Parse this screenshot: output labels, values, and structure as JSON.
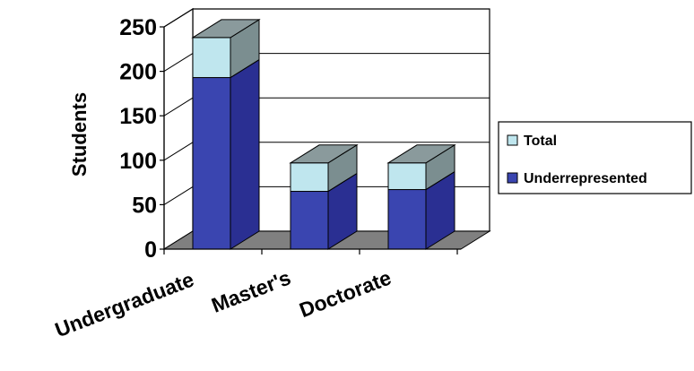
{
  "chart_data": {
    "type": "bar",
    "stacked": true,
    "three_d": true,
    "categories": [
      "Undergraduate",
      "Master's",
      "Doctorate"
    ],
    "series": [
      {
        "name": "Underrepresented",
        "values": [
          193,
          65,
          67
        ],
        "color": "#3a45b0"
      },
      {
        "name": "Total",
        "values": [
          238,
          97,
          97
        ],
        "color": "#bfe6ee"
      }
    ],
    "ylabel": "Students",
    "xlabel": "",
    "title": "",
    "ylim": [
      0,
      250
    ],
    "yticks": [
      "0",
      "50",
      "100",
      "150",
      "200",
      "250"
    ],
    "grid": true,
    "legend": {
      "position": "right",
      "entries": [
        "Total",
        "Underrepresented"
      ]
    }
  }
}
